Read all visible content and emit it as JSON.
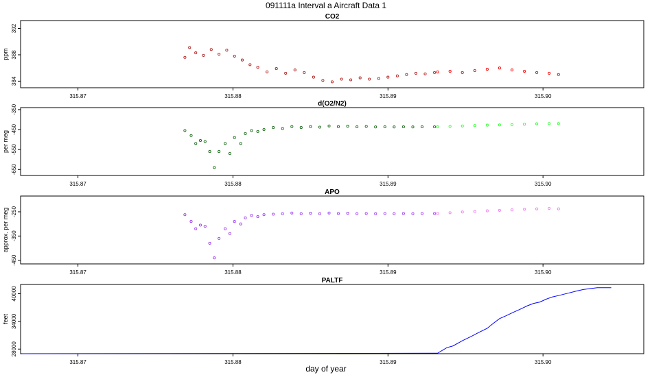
{
  "figure": {
    "title": "091111a   Interval a Aircraft Data 1",
    "xlabel": "day of year"
  },
  "chart_data": [
    {
      "type": "scatter",
      "title": "CO2",
      "ylabel": "ppm",
      "xlim": [
        315.8663,
        315.9065
      ],
      "ylim": [
        383.0,
        393.2
      ],
      "xticks": [
        315.87,
        315.88,
        315.89,
        315.9
      ],
      "yticks": [
        384,
        388,
        392
      ],
      "series": [
        {
          "color": "#b22222",
          "points": [
            [
              315.8769,
              387.6
            ],
            [
              315.8772,
              389.1
            ],
            [
              315.8776,
              388.3
            ],
            [
              315.8781,
              387.9
            ],
            [
              315.8786,
              388.8
            ],
            [
              315.8791,
              388.1
            ],
            [
              315.8796,
              388.7
            ],
            [
              315.8801,
              387.8
            ],
            [
              315.8806,
              387.2
            ],
            [
              315.8811,
              386.5
            ],
            [
              315.8816,
              386.1
            ],
            [
              315.8822,
              385.4
            ],
            [
              315.8828,
              385.9
            ],
            [
              315.8834,
              385.2
            ],
            [
              315.884,
              385.7
            ],
            [
              315.8846,
              385.3
            ],
            [
              315.8852,
              384.6
            ],
            [
              315.8858,
              384.1
            ],
            [
              315.8864,
              383.9
            ],
            [
              315.887,
              384.3
            ],
            [
              315.8876,
              384.2
            ],
            [
              315.8882,
              384.5
            ],
            [
              315.8888,
              384.3
            ],
            [
              315.8894,
              384.4
            ],
            [
              315.89,
              384.6
            ],
            [
              315.8906,
              384.8
            ],
            [
              315.8912,
              385.0
            ],
            [
              315.8918,
              385.2
            ],
            [
              315.8924,
              385.1
            ],
            [
              315.893,
              385.3
            ]
          ]
        },
        {
          "color": "#ff0000",
          "points": [
            [
              315.8932,
              385.4
            ],
            [
              315.894,
              385.5
            ],
            [
              315.8948,
              385.3
            ],
            [
              315.8956,
              385.6
            ],
            [
              315.8964,
              385.8
            ],
            [
              315.8972,
              386.0
            ],
            [
              315.898,
              385.7
            ],
            [
              315.8988,
              385.5
            ],
            [
              315.8996,
              385.3
            ],
            [
              315.9004,
              385.2
            ],
            [
              315.901,
              385.0
            ]
          ]
        }
      ]
    },
    {
      "type": "scatter",
      "title": "d(O2/N2)",
      "ylabel": "per meg",
      "xlim": [
        315.8663,
        315.9065
      ],
      "ylim": [
        -680,
        -340
      ],
      "xticks": [
        315.87,
        315.88,
        315.89,
        315.9
      ],
      "yticks": [
        -350,
        -450,
        -550,
        -650
      ],
      "series": [
        {
          "color": "#1a6b1a",
          "points": [
            [
              315.8769,
              -455
            ],
            [
              315.8773,
              -480
            ],
            [
              315.8776,
              -520
            ],
            [
              315.8779,
              -505
            ],
            [
              315.8782,
              -510
            ],
            [
              315.8785,
              -560
            ],
            [
              315.8788,
              -640
            ],
            [
              315.8791,
              -560
            ],
            [
              315.8795,
              -520
            ],
            [
              315.8798,
              -570
            ],
            [
              315.8801,
              -490
            ],
            [
              315.8805,
              -520
            ],
            [
              315.8808,
              -470
            ],
            [
              315.8812,
              -455
            ],
            [
              315.8816,
              -460
            ],
            [
              315.882,
              -450
            ],
            [
              315.8826,
              -440
            ],
            [
              315.8832,
              -445
            ],
            [
              315.8838,
              -435
            ],
            [
              315.8844,
              -440
            ],
            [
              315.885,
              -435
            ],
            [
              315.8856,
              -438
            ],
            [
              315.8862,
              -432
            ],
            [
              315.8868,
              -435
            ],
            [
              315.8874,
              -433
            ],
            [
              315.888,
              -436
            ],
            [
              315.8886,
              -434
            ],
            [
              315.8892,
              -437
            ],
            [
              315.8898,
              -436
            ],
            [
              315.8904,
              -437
            ],
            [
              315.891,
              -436
            ],
            [
              315.8916,
              -437
            ],
            [
              315.8922,
              -436
            ],
            [
              315.893,
              -436
            ]
          ]
        },
        {
          "color": "#33ff33",
          "points": [
            [
              315.8932,
              -436
            ],
            [
              315.894,
              -434
            ],
            [
              315.8948,
              -432
            ],
            [
              315.8956,
              -430
            ],
            [
              315.8964,
              -428
            ],
            [
              315.8972,
              -427
            ],
            [
              315.898,
              -425
            ],
            [
              315.8988,
              -423
            ],
            [
              315.8996,
              -421
            ],
            [
              315.9004,
              -420
            ],
            [
              315.901,
              -420
            ]
          ]
        }
      ]
    },
    {
      "type": "scatter",
      "title": "APO",
      "ylabel": "approx. per meg",
      "xlim": [
        315.8663,
        315.9065
      ],
      "ylim": [
        -465,
        -185
      ],
      "xticks": [
        315.87,
        315.88,
        315.89,
        315.9
      ],
      "yticks": [
        -250,
        -350,
        -450
      ],
      "series": [
        {
          "color": "#a040f0",
          "points": [
            [
              315.8769,
              -262
            ],
            [
              315.8773,
              -290
            ],
            [
              315.8776,
              -320
            ],
            [
              315.8779,
              -305
            ],
            [
              315.8782,
              -310
            ],
            [
              315.8785,
              -380
            ],
            [
              315.8788,
              -440
            ],
            [
              315.8791,
              -360
            ],
            [
              315.8795,
              -320
            ],
            [
              315.8798,
              -340
            ],
            [
              315.8801,
              -290
            ],
            [
              315.8805,
              -300
            ],
            [
              315.8808,
              -275
            ],
            [
              315.8812,
              -265
            ],
            [
              315.8816,
              -270
            ],
            [
              315.882,
              -262
            ],
            [
              315.8826,
              -260
            ],
            [
              315.8832,
              -258
            ],
            [
              315.8838,
              -255
            ],
            [
              315.8844,
              -258
            ],
            [
              315.885,
              -256
            ],
            [
              315.8856,
              -258
            ],
            [
              315.8862,
              -255
            ],
            [
              315.8868,
              -257
            ],
            [
              315.8874,
              -256
            ],
            [
              315.888,
              -258
            ],
            [
              315.8886,
              -257
            ],
            [
              315.8892,
              -258
            ],
            [
              315.8898,
              -257
            ],
            [
              315.8904,
              -258
            ],
            [
              315.891,
              -257
            ],
            [
              315.8916,
              -258
            ],
            [
              315.8922,
              -257
            ],
            [
              315.893,
              -257
            ]
          ]
        },
        {
          "color": "#ee82ee",
          "points": [
            [
              315.8932,
              -257
            ],
            [
              315.894,
              -254
            ],
            [
              315.8948,
              -251
            ],
            [
              315.8956,
              -249
            ],
            [
              315.8964,
              -246
            ],
            [
              315.8972,
              -244
            ],
            [
              315.898,
              -242
            ],
            [
              315.8988,
              -240
            ],
            [
              315.8996,
              -238
            ],
            [
              315.9004,
              -236
            ],
            [
              315.901,
              -238
            ]
          ]
        }
      ]
    },
    {
      "type": "line",
      "title": "PALTF",
      "ylabel": "feet",
      "xlim": [
        315.8663,
        315.9065
      ],
      "ylim": [
        27000,
        42000
      ],
      "xticks": [
        315.87,
        315.88,
        315.89,
        315.9
      ],
      "yticks": [
        28000,
        34000,
        40000
      ],
      "series": [
        {
          "color": "#0000ff",
          "x": [
            315.8664,
            315.8932,
            315.8938,
            315.8942,
            315.8948,
            315.8954,
            315.8958,
            315.8964,
            315.8968,
            315.8972,
            315.8976,
            315.8981,
            315.8985,
            315.899,
            315.8994,
            315.8998,
            315.9002,
            315.9006,
            315.901,
            315.9016,
            315.9022,
            315.9026,
            315.903,
            315.9035,
            315.9044
          ],
          "y": [
            27000,
            27100,
            28300,
            28700,
            29800,
            30800,
            31500,
            32500,
            33600,
            34600,
            35200,
            36000,
            36600,
            37400,
            37900,
            38200,
            38800,
            39300,
            39600,
            40100,
            40600,
            40900,
            41100,
            41300,
            41300
          ]
        }
      ]
    }
  ]
}
